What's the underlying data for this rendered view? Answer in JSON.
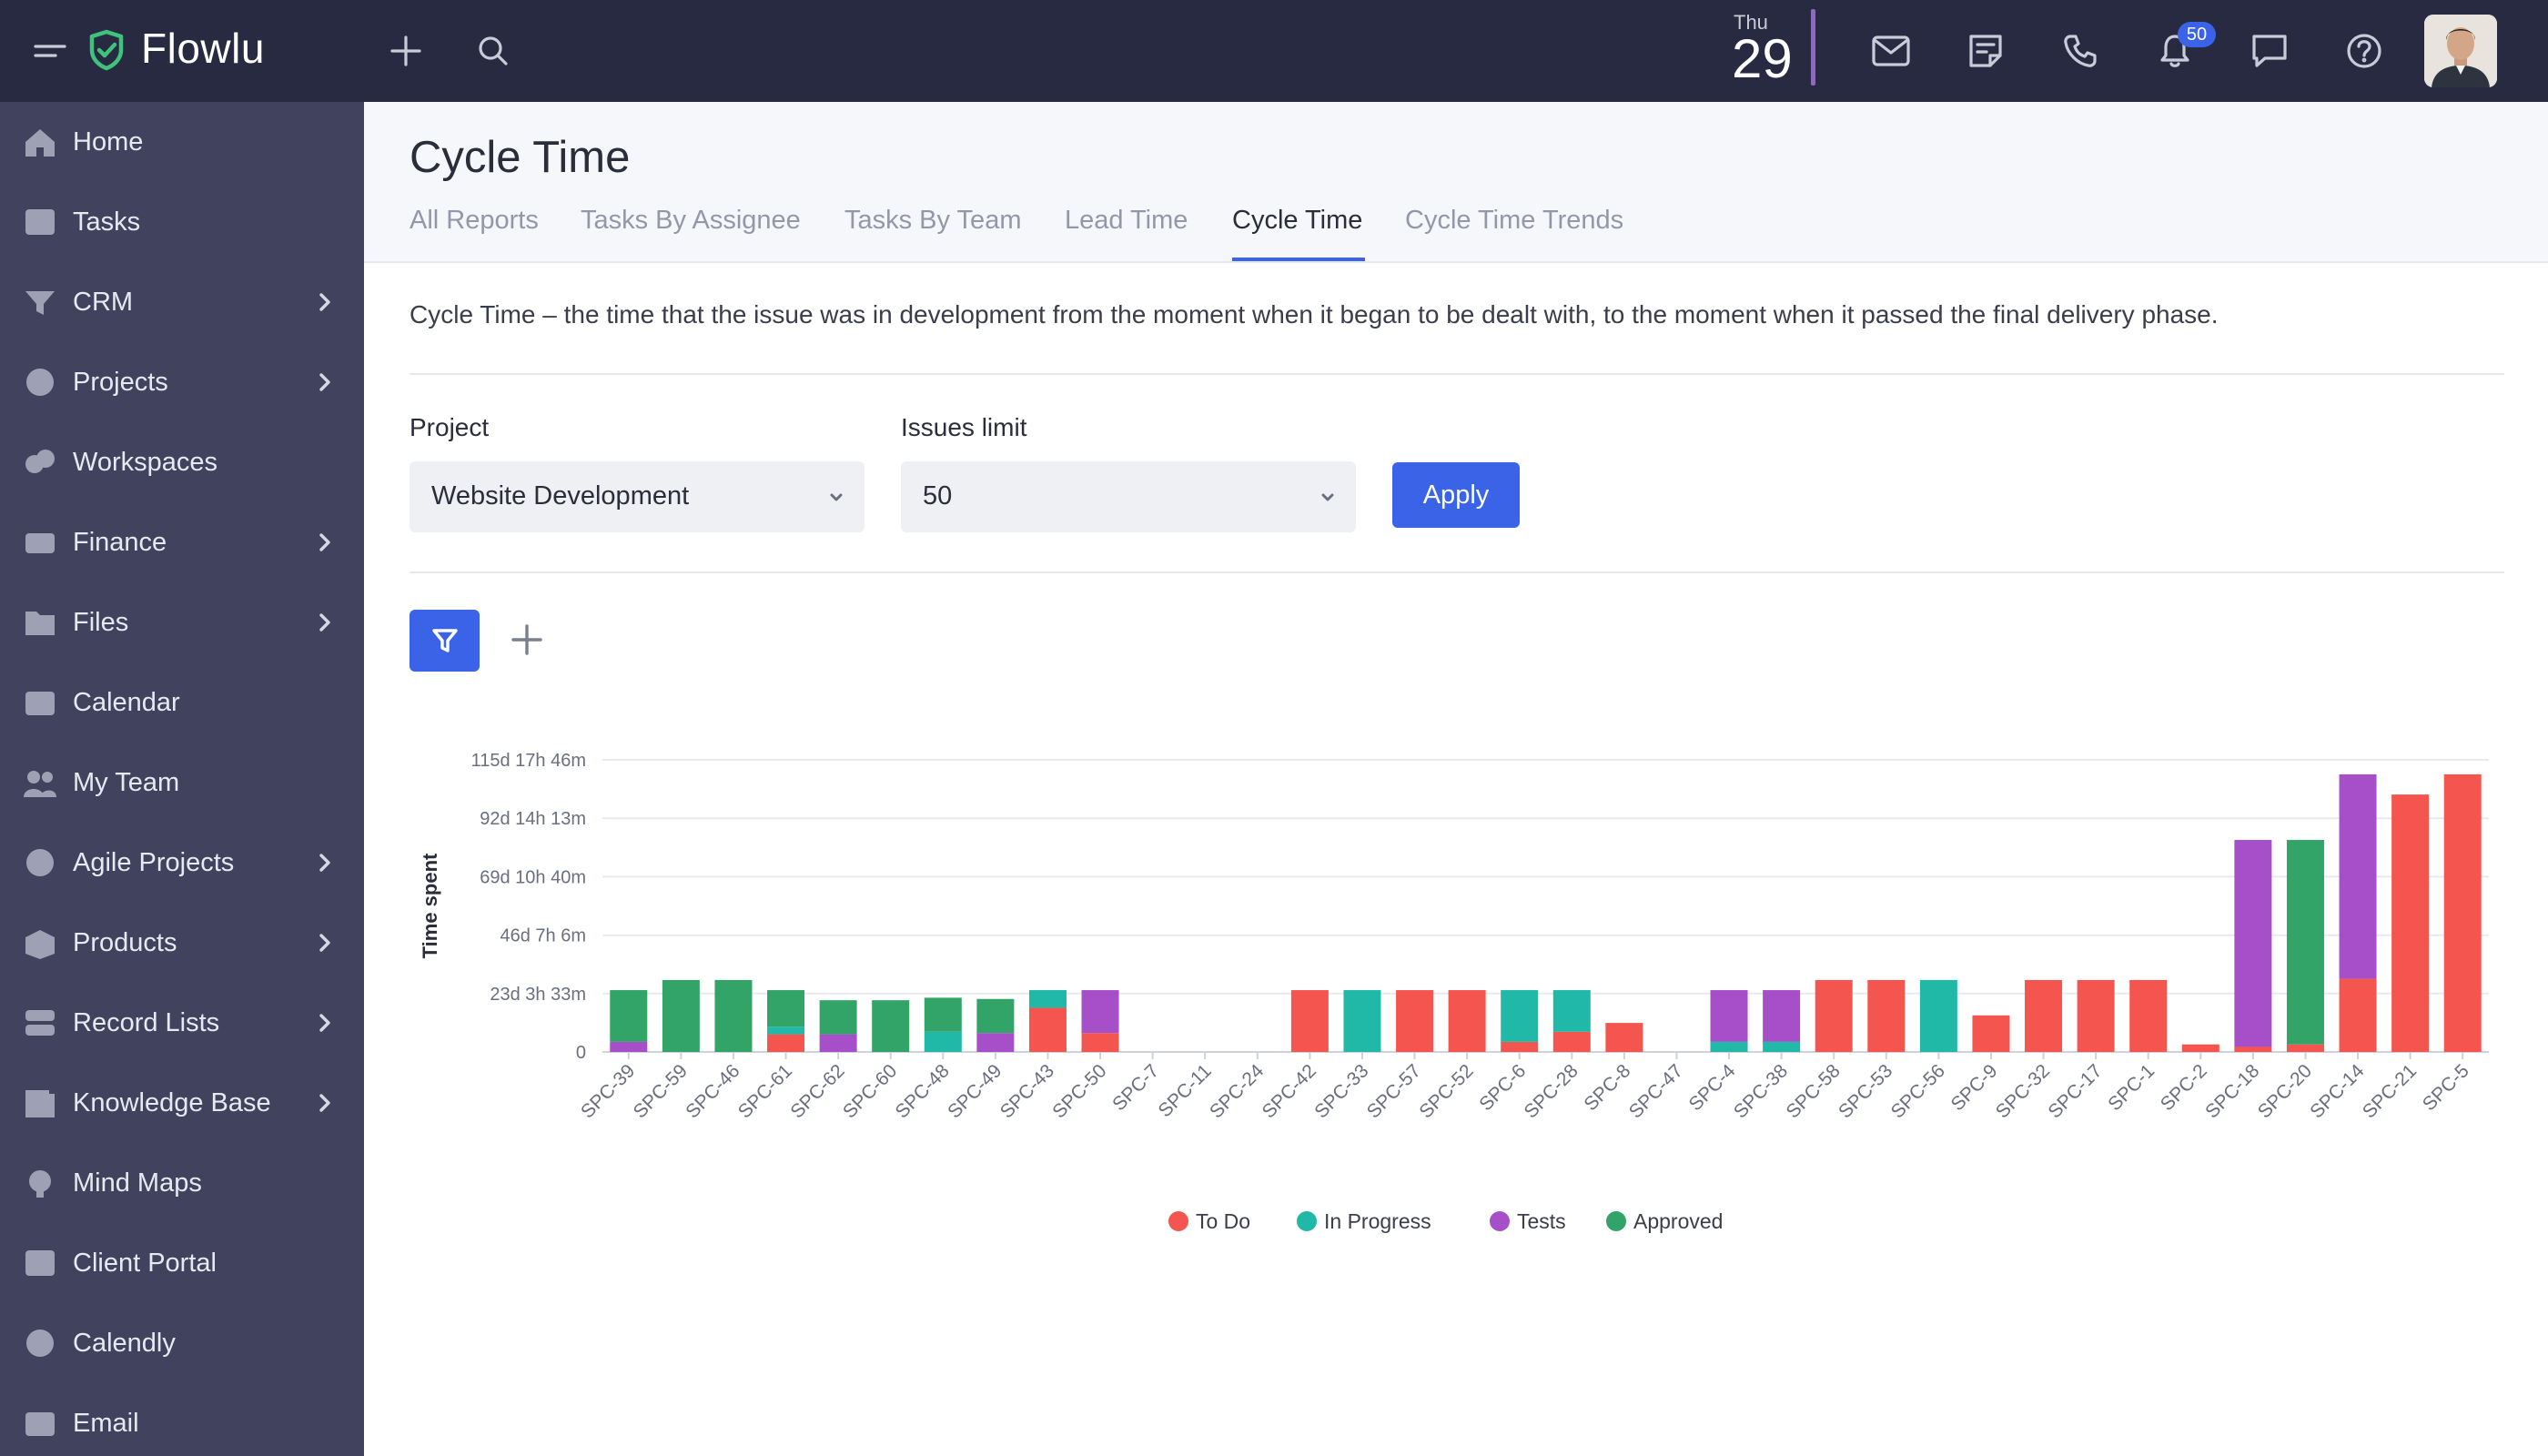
{
  "app": {
    "name": "Flowlu"
  },
  "header": {
    "date_dow": "Thu",
    "date_day": "29",
    "notifications_count": "50"
  },
  "sidebar": {
    "items": [
      {
        "label": "Home",
        "icon": "home-icon",
        "has_submenu": false
      },
      {
        "label": "Tasks",
        "icon": "tasks-icon",
        "has_submenu": false
      },
      {
        "label": "CRM",
        "icon": "crm-icon",
        "has_submenu": true
      },
      {
        "label": "Projects",
        "icon": "projects-icon",
        "has_submenu": true
      },
      {
        "label": "Workspaces",
        "icon": "workspaces-icon",
        "has_submenu": false
      },
      {
        "label": "Finance",
        "icon": "finance-icon",
        "has_submenu": true
      },
      {
        "label": "Files",
        "icon": "files-icon",
        "has_submenu": true
      },
      {
        "label": "Calendar",
        "icon": "calendar-icon",
        "has_submenu": false
      },
      {
        "label": "My Team",
        "icon": "team-icon",
        "has_submenu": false
      },
      {
        "label": "Agile Projects",
        "icon": "agile-icon",
        "has_submenu": true
      },
      {
        "label": "Products",
        "icon": "products-icon",
        "has_submenu": true
      },
      {
        "label": "Record Lists",
        "icon": "record-lists-icon",
        "has_submenu": true
      },
      {
        "label": "Knowledge Base",
        "icon": "knowledge-base-icon",
        "has_submenu": true
      },
      {
        "label": "Mind Maps",
        "icon": "mind-maps-icon",
        "has_submenu": false
      },
      {
        "label": "Client Portal",
        "icon": "client-portal-icon",
        "has_submenu": false
      },
      {
        "label": "Calendly",
        "icon": "calendly-icon",
        "has_submenu": false
      },
      {
        "label": "Email",
        "icon": "email-icon",
        "has_submenu": false
      }
    ]
  },
  "page": {
    "title": "Cycle Time",
    "tabs": [
      {
        "label": "All Reports",
        "active": false
      },
      {
        "label": "Tasks By Assignee",
        "active": false
      },
      {
        "label": "Tasks By Team",
        "active": false
      },
      {
        "label": "Lead Time",
        "active": false
      },
      {
        "label": "Cycle Time",
        "active": true
      },
      {
        "label": "Cycle Time Trends",
        "active": false
      }
    ],
    "description": "Cycle Time – the time that the issue was in development from the moment when it began to be dealt with, to the moment when it passed the final delivery phase.",
    "filters": {
      "project_label": "Project",
      "project_value": "Website Development",
      "issues_limit_label": "Issues limit",
      "issues_limit_value": "50",
      "apply_label": "Apply"
    }
  },
  "colors": {
    "accent": "#3b63e8",
    "to_do": "#f5554f",
    "in_progress": "#20b8a6",
    "tests": "#a64fc9",
    "approved": "#32a467"
  },
  "chart_data": {
    "type": "bar",
    "stacked": true,
    "ylabel": "Time spent",
    "y_unit": "days",
    "ylim": [
      0,
      115.74
    ],
    "y_tick_values": [
      0,
      23.15,
      46.26,
      69.44,
      92.59,
      115.74
    ],
    "y_tick_labels": [
      "0",
      "23d 3h 33m",
      "46d 7h 6m",
      "69d 10h 40m",
      "92d 14h 13m",
      "115d 17h 46m"
    ],
    "categories": [
      "SPC-39",
      "SPC-59",
      "SPC-46",
      "SPC-61",
      "SPC-62",
      "SPC-60",
      "SPC-48",
      "SPC-49",
      "SPC-43",
      "SPC-50",
      "SPC-7",
      "SPC-11",
      "SPC-24",
      "SPC-42",
      "SPC-33",
      "SPC-57",
      "SPC-52",
      "SPC-6",
      "SPC-28",
      "SPC-8",
      "SPC-47",
      "SPC-4",
      "SPC-38",
      "SPC-58",
      "SPC-53",
      "SPC-56",
      "SPC-9",
      "SPC-32",
      "SPC-17",
      "SPC-1",
      "SPC-2",
      "SPC-18",
      "SPC-20",
      "SPC-14",
      "SPC-21",
      "SPC-5"
    ],
    "series": [
      {
        "name": "To Do",
        "color": "#f5554f",
        "values": [
          0,
          0,
          0,
          7,
          0,
          0,
          0,
          0,
          17.5,
          7.5,
          0,
          0,
          0,
          24.5,
          0,
          24.5,
          24.5,
          4,
          8,
          11.5,
          0,
          0,
          0,
          28.5,
          28.5,
          0,
          14.5,
          28.5,
          28.5,
          28.5,
          3,
          2,
          3,
          29,
          102,
          110
        ]
      },
      {
        "name": "In Progress",
        "color": "#20b8a6",
        "values": [
          0,
          0,
          0,
          3,
          0,
          0,
          8,
          0,
          7,
          0,
          0,
          0,
          0,
          0,
          24.5,
          0,
          0,
          20.5,
          16.5,
          0,
          0,
          4,
          4,
          0,
          0,
          28.5,
          0,
          0,
          0,
          0,
          0,
          0,
          0,
          0,
          0,
          0
        ]
      },
      {
        "name": "Tests",
        "color": "#a64fc9",
        "values": [
          4,
          0,
          0,
          0,
          7,
          0,
          0,
          7.5,
          0,
          17,
          0,
          0,
          0,
          0,
          0,
          0,
          0,
          0,
          0,
          0,
          0,
          20.5,
          20.5,
          0,
          0,
          0,
          0,
          0,
          0,
          0,
          0,
          82,
          0,
          81,
          0,
          0
        ]
      },
      {
        "name": "Approved",
        "color": "#32a467",
        "values": [
          20.5,
          28.5,
          28.5,
          14.5,
          13.5,
          20.5,
          13.5,
          13.5,
          0,
          0,
          0,
          0,
          0,
          0,
          0,
          0,
          0,
          0,
          0,
          0,
          0,
          0,
          0,
          0,
          0,
          0,
          0,
          0,
          0,
          0,
          0,
          0,
          81,
          0,
          0,
          0
        ]
      }
    ],
    "legend": {
      "position": "bottom"
    },
    "grid": true
  }
}
